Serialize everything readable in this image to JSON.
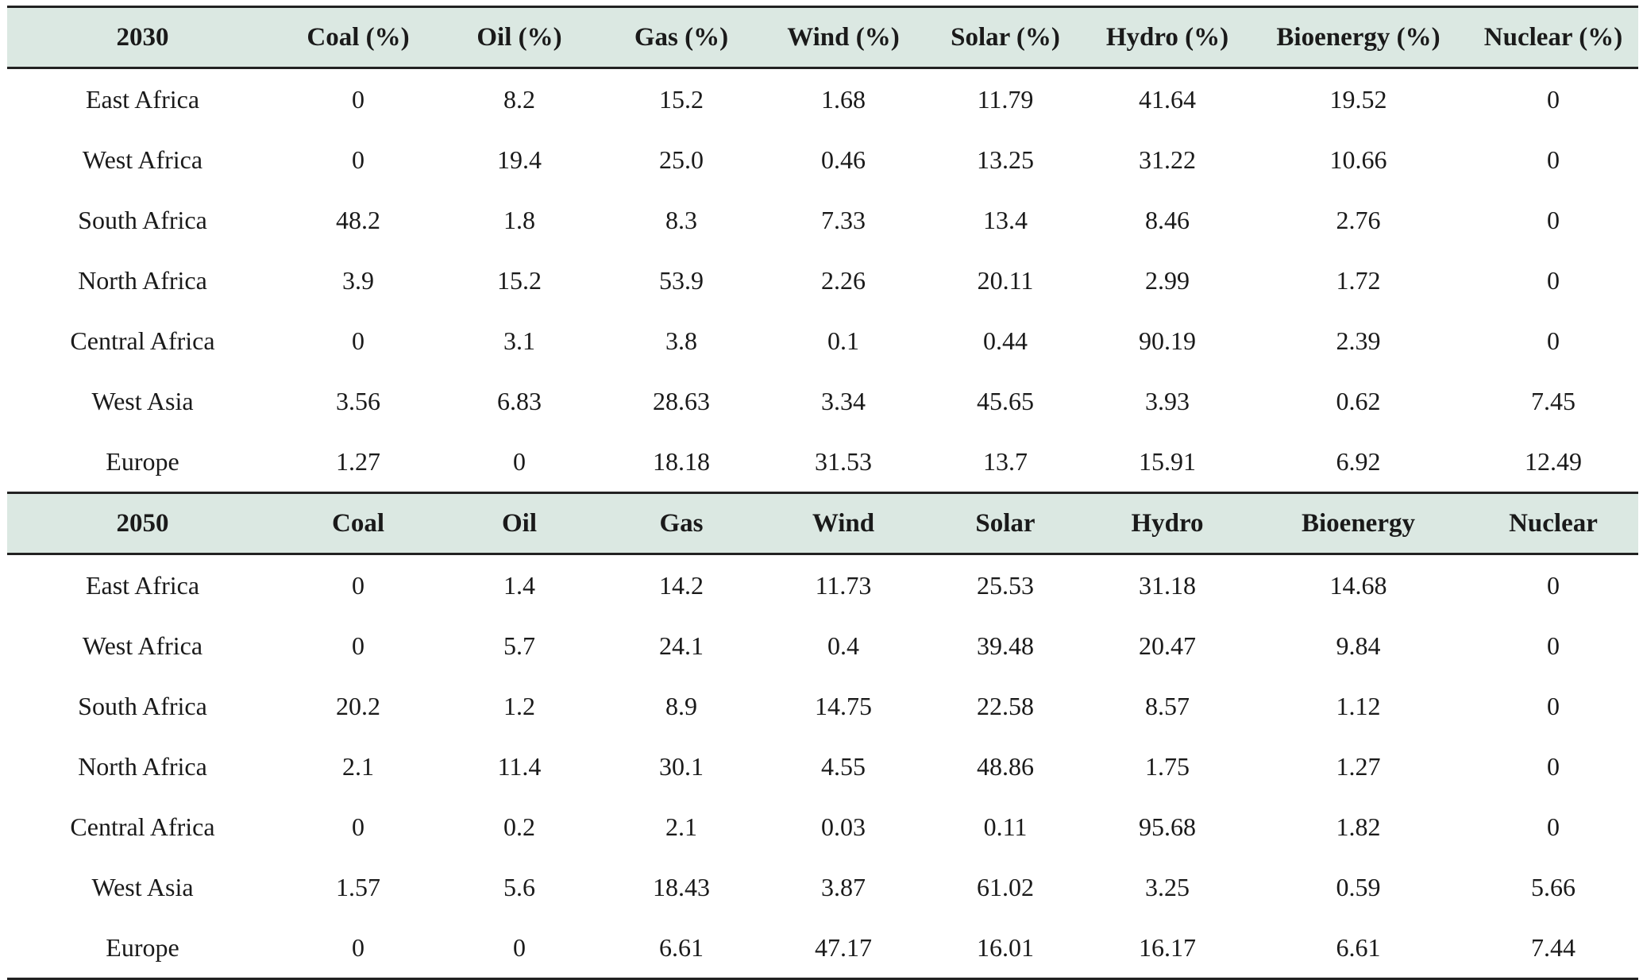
{
  "sections": [
    {
      "header": [
        "2030",
        "Coal (%)",
        "Oil (%)",
        "Gas (%)",
        "Wind (%)",
        "Solar (%)",
        "Hydro (%)",
        "Bioenergy (%)",
        "Nuclear (%)"
      ],
      "rows": [
        [
          "East Africa",
          "0",
          "8.2",
          "15.2",
          "1.68",
          "11.79",
          "41.64",
          "19.52",
          "0"
        ],
        [
          "West Africa",
          "0",
          "19.4",
          "25.0",
          "0.46",
          "13.25",
          "31.22",
          "10.66",
          "0"
        ],
        [
          "South Africa",
          "48.2",
          "1.8",
          "8.3",
          "7.33",
          "13.4",
          "8.46",
          "2.76",
          "0"
        ],
        [
          "North Africa",
          "3.9",
          "15.2",
          "53.9",
          "2.26",
          "20.11",
          "2.99",
          "1.72",
          "0"
        ],
        [
          "Central Africa",
          "0",
          "3.1",
          "3.8",
          "0.1",
          "0.44",
          "90.19",
          "2.39",
          "0"
        ],
        [
          "West Asia",
          "3.56",
          "6.83",
          "28.63",
          "3.34",
          "45.65",
          "3.93",
          "0.62",
          "7.45"
        ],
        [
          "Europe",
          "1.27",
          "0",
          "18.18",
          "31.53",
          "13.7",
          "15.91",
          "6.92",
          "12.49"
        ]
      ]
    },
    {
      "header": [
        "2050",
        "Coal",
        "Oil",
        "Gas",
        "Wind",
        "Solar",
        "Hydro",
        "Bioenergy",
        "Nuclear"
      ],
      "rows": [
        [
          "East Africa",
          "0",
          "1.4",
          "14.2",
          "11.73",
          "25.53",
          "31.18",
          "14.68",
          "0"
        ],
        [
          "West Africa",
          "0",
          "5.7",
          "24.1",
          "0.4",
          "39.48",
          "20.47",
          "9.84",
          "0"
        ],
        [
          "South Africa",
          "20.2",
          "1.2",
          "8.9",
          "14.75",
          "22.58",
          "8.57",
          "1.12",
          "0"
        ],
        [
          "North Africa",
          "2.1",
          "11.4",
          "30.1",
          "4.55",
          "48.86",
          "1.75",
          "1.27",
          "0"
        ],
        [
          "Central Africa",
          "0",
          "0.2",
          "2.1",
          "0.03",
          "0.11",
          "95.68",
          "1.82",
          "0"
        ],
        [
          "West Asia",
          "1.57",
          "5.6",
          "18.43",
          "3.87",
          "61.02",
          "3.25",
          "0.59",
          "5.66"
        ],
        [
          "Europe",
          "0",
          "0",
          "6.61",
          "47.17",
          "16.01",
          "16.17",
          "6.61",
          "7.44"
        ]
      ]
    }
  ],
  "colors": {
    "header_background": "#dbe8e2",
    "rule": "#222222",
    "text": "#1a1a1a"
  }
}
